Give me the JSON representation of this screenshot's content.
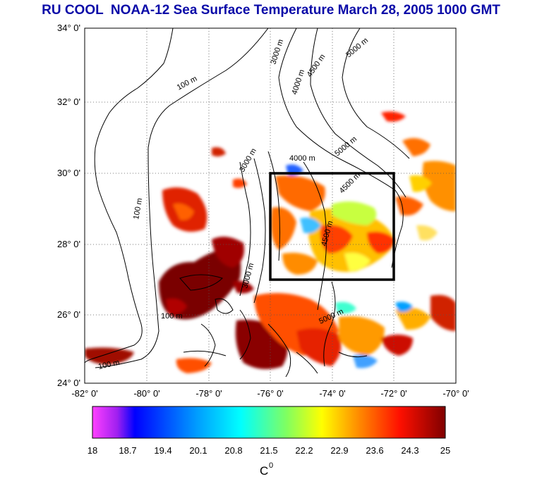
{
  "title": "RU COOL  NOAA-12 Sea Surface Temperature March 28, 2005 1000 GMT",
  "map": {
    "lat_labels": [
      "34° 0'",
      "32° 0'",
      "30° 0'",
      "28° 0'",
      "26° 0'",
      "24° 0'"
    ],
    "lon_labels": [
      "-82° 0'",
      "-80° 0'",
      "-78° 0'",
      "-76° 0'",
      "-74° 0'",
      "-72° 0'",
      "-70° 0'"
    ],
    "lat_range": [
      24,
      34
    ],
    "lon_range": [
      -82,
      -70
    ],
    "contour_labels": [
      "100 m",
      "100 m",
      "100 m",
      "100 m",
      "3000 m",
      "4000 m",
      "4500 m",
      "5000 m",
      "3000 m",
      "4000 m",
      "5000 m",
      "4500 m",
      "3000 m",
      "4500 m",
      "5000 m"
    ],
    "study_box": {
      "lon": [
        -76,
        -72
      ],
      "lat": [
        27,
        30
      ]
    },
    "grid": true
  },
  "colorbar": {
    "ticks": [
      "18",
      "18.7",
      "19.4",
      "20.1",
      "20.8",
      "21.5",
      "22.2",
      "22.9",
      "23.6",
      "24.3",
      "25"
    ],
    "range": [
      18,
      25
    ],
    "unit_label": "C",
    "unit_sup": "0"
  },
  "colors": {
    "title": "#0a0aa8",
    "scale": [
      "#ff40ff",
      "#0000ff",
      "#00ffff",
      "#80ff40",
      "#ffff00",
      "#ff8000",
      "#ff0000",
      "#800000"
    ]
  }
}
